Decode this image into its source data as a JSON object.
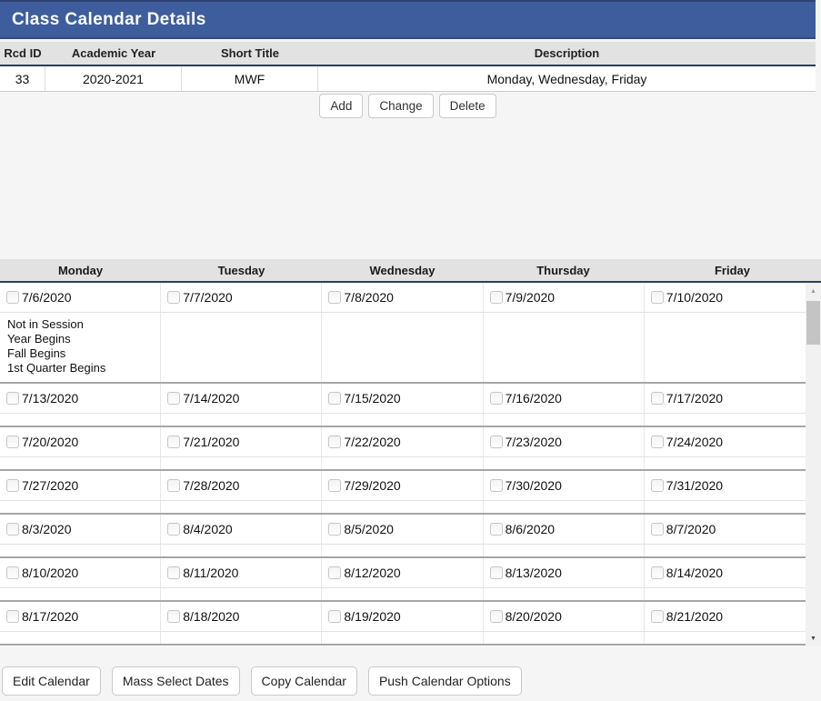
{
  "title_bar": {
    "title": "Class Calendar Details"
  },
  "details_table": {
    "columns": [
      "Rcd ID",
      "Academic Year",
      "Short Title",
      "Description"
    ],
    "row": {
      "rcd_id": "33",
      "academic_year": "2020-2021",
      "short_title": "MWF",
      "description": "Monday, Wednesday, Friday"
    }
  },
  "record_actions": {
    "add": "Add",
    "change": "Change",
    "delete": "Delete"
  },
  "calendar": {
    "day_headers": [
      "Monday",
      "Tuesday",
      "Wednesday",
      "Thursday",
      "Friday"
    ],
    "weeks": [
      {
        "dates": [
          "7/6/2020",
          "7/7/2020",
          "7/8/2020",
          "7/9/2020",
          "7/10/2020"
        ],
        "notes": [
          [
            "Not in Session",
            "Year Begins",
            "Fall Begins",
            "1st Quarter Begins"
          ],
          [],
          [],
          [],
          []
        ]
      },
      {
        "dates": [
          "7/13/2020",
          "7/14/2020",
          "7/15/2020",
          "7/16/2020",
          "7/17/2020"
        ],
        "notes": [
          [],
          [],
          [],
          [],
          []
        ]
      },
      {
        "dates": [
          "7/20/2020",
          "7/21/2020",
          "7/22/2020",
          "7/23/2020",
          "7/24/2020"
        ],
        "notes": [
          [],
          [],
          [],
          [],
          []
        ]
      },
      {
        "dates": [
          "7/27/2020",
          "7/28/2020",
          "7/29/2020",
          "7/30/2020",
          "7/31/2020"
        ],
        "notes": [
          [],
          [],
          [],
          [],
          []
        ]
      },
      {
        "dates": [
          "8/3/2020",
          "8/4/2020",
          "8/5/2020",
          "8/6/2020",
          "8/7/2020"
        ],
        "notes": [
          [],
          [],
          [],
          [],
          []
        ]
      },
      {
        "dates": [
          "8/10/2020",
          "8/11/2020",
          "8/12/2020",
          "8/13/2020",
          "8/14/2020"
        ],
        "notes": [
          [],
          [],
          [],
          [],
          []
        ]
      },
      {
        "dates": [
          "8/17/2020",
          "8/18/2020",
          "8/19/2020",
          "8/20/2020",
          "8/21/2020"
        ],
        "notes": [
          [],
          [],
          [],
          [],
          []
        ]
      }
    ]
  },
  "calendar_actions": [
    "Edit Calendar",
    "Mass Select Dates",
    "Copy Calendar",
    "Push Calendar Options"
  ],
  "scrollbar": {
    "up_icon": "▲",
    "down_icon": "▼"
  },
  "colors": {
    "title_bar_bg": "#3e5d9c",
    "header_row_bg": "#e2e2e2",
    "header_border": "#2e3c5f",
    "week_separator": "#a6a6a6",
    "page_bg": "#f5f5f5",
    "scrollbar_thumb": "#c4c4c4"
  }
}
